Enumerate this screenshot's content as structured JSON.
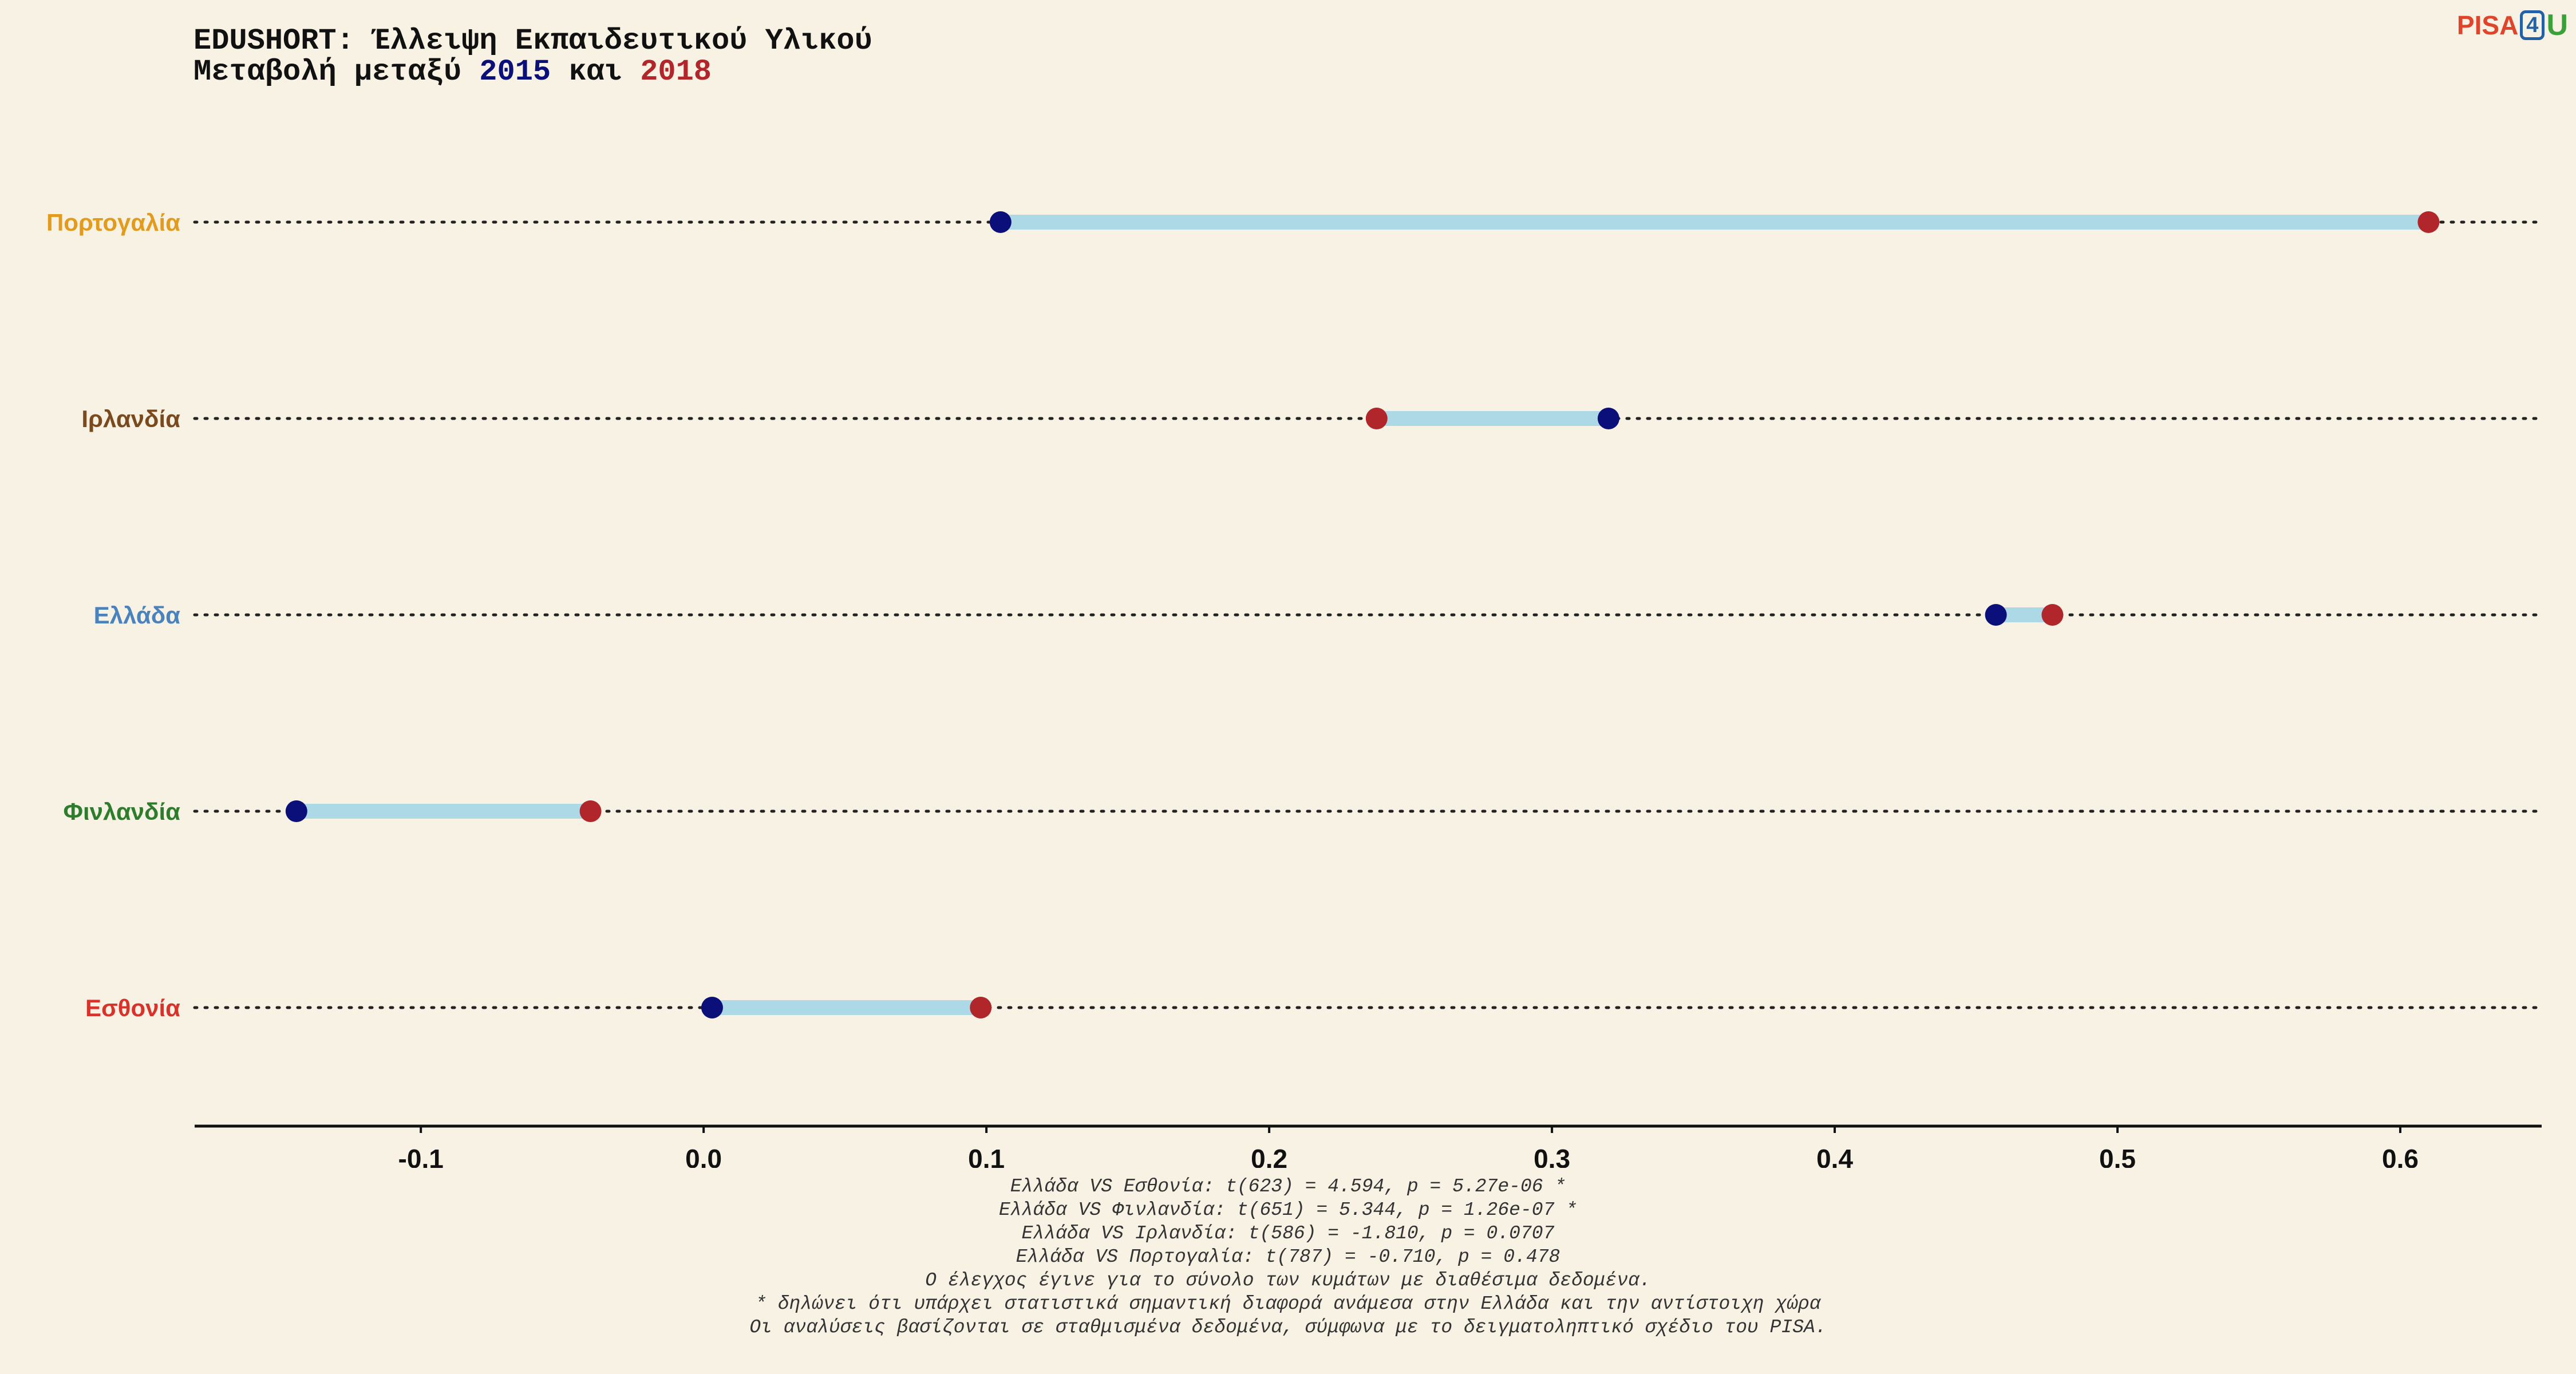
{
  "header": {
    "title": "EDUSHORT: Έλλειψη Εκπαιδευτικού Υλικού",
    "subtitle_prefix": "Μεταβολή μεταξύ",
    "subtitle_year1": "2015",
    "subtitle_mid": "και",
    "subtitle_year2": "2018"
  },
  "logo": {
    "pisa": "PISA",
    "four": "4",
    "u": "U"
  },
  "colors": {
    "year_2015": "#0b0f7a",
    "year_2018": "#b0262a",
    "segment": "#add8e6",
    "background": "#f8f2e4"
  },
  "chart_data": {
    "type": "dumbbell",
    "title": "EDUSHORT: Έλλειψη Εκπαιδευτικού Υλικού",
    "series_names": [
      "2015",
      "2018"
    ],
    "xlim": [
      -0.18,
      0.65
    ],
    "xticks": [
      -0.1,
      0.0,
      0.1,
      0.2,
      0.3,
      0.4,
      0.5,
      0.6
    ],
    "xtick_labels": [
      "-0.1",
      "0.0",
      "0.1",
      "0.2",
      "0.3",
      "0.4",
      "0.5",
      "0.6"
    ],
    "grid": "dotted horizontal per country",
    "rows": [
      {
        "country": "Πορτογαλία",
        "color": "#e39b1e",
        "v2015": 0.105,
        "v2018": 0.61
      },
      {
        "country": "Ιρλανδία",
        "color": "#7a4a1e",
        "v2015": 0.32,
        "v2018": 0.238
      },
      {
        "country": "Ελλάδα",
        "color": "#4a82be",
        "v2015": 0.457,
        "v2018": 0.477
      },
      {
        "country": "Φινλανδία",
        "color": "#2d7d2d",
        "v2015": -0.144,
        "v2018": -0.04
      },
      {
        "country": "Εσθονία",
        "color": "#d8322a",
        "v2015": 0.003,
        "v2018": 0.098
      }
    ]
  },
  "notes": [
    "Ελλάδα VS Εσθονία: t(623) = 4.594, p = 5.27e-06 *",
    "Ελλάδα VS Φινλανδία: t(651) = 5.344, p = 1.26e-07 *",
    "Ελλάδα VS Ιρλανδία: t(586) = -1.810, p = 0.0707",
    "Ελλάδα VS Πορτογαλία: t(787) = -0.710, p = 0.478",
    "Ο έλεγχος έγινε για το σύνολο των κυμάτων με διαθέσιμα δεδομένα.",
    "* δηλώνει ότι υπάρχει στατιστικά σημαντική διαφορά ανάμεσα στην Ελλάδα και την αντίστοιχη χώρα",
    "Οι αναλύσεις βασίζονται σε σταθμισμένα δεδομένα, σύμφωνα με το δειγματοληπτικό σχέδιο του PISA."
  ]
}
